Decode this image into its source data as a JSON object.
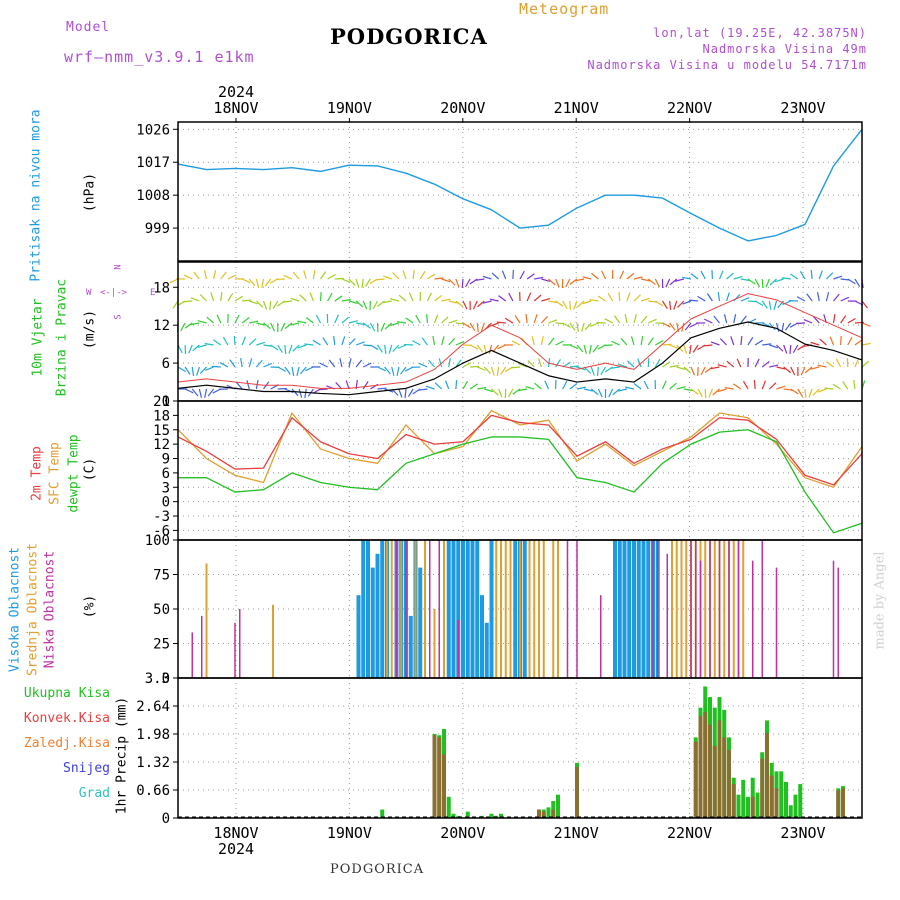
{
  "header": {
    "model_label": "Model",
    "model_name": "wrf—nmm_v3.9.1 e1km",
    "title": "PODGORICA",
    "meteogram": "Meteogram",
    "lonlat": "lon,lat (19.25E, 42.3875N)",
    "elevation": "Nadmorska Visina 49m",
    "model_elevation": "Nadmorska Visina u modelu 54.7171m",
    "footer_title": "PODGORICA",
    "watermark": "made by Angel"
  },
  "colors": {
    "pressure": "#1e9be0",
    "temp2m": "#e84040",
    "sfc": "#e0a030",
    "dewpt": "#20c020",
    "high_cloud": "#1e9be0",
    "mid_cloud": "#e0a030",
    "low_cloud": "#c030a0",
    "total_precip": "#20c020",
    "conv_precip": "#e84040",
    "frozen_precip": "#f08030",
    "snow": "#4040e0",
    "hail": "#30c0c0",
    "header_purple": "#b050d0",
    "header_orange": "#e0a030"
  },
  "time_axis": {
    "top_year": "2024",
    "bottom_year": "2024",
    "days": [
      "18NOV",
      "19NOV",
      "20NOV",
      "21NOV",
      "22NOV",
      "23NOV"
    ]
  },
  "chart_data": [
    {
      "type": "line",
      "name": "pressure",
      "ylabel_lines": [
        "Pritisak na nivou mora",
        "(hPa)"
      ],
      "ylim": [
        990,
        1028
      ],
      "yticks": [
        "1026",
        "1017",
        "1008",
        "999"
      ],
      "ytick_values": [
        1026,
        1017,
        1008,
        999
      ],
      "x": [
        0,
        6,
        12,
        18,
        24,
        30,
        36,
        42,
        48,
        54,
        60,
        66,
        72,
        78,
        84,
        90,
        96,
        102,
        108,
        114,
        120,
        126,
        132,
        138,
        144
      ],
      "series": [
        {
          "values": [
            1016.5,
            1015.0,
            1015.3,
            1015.0,
            1015.5,
            1014.5,
            1016.2,
            1016.0,
            1014.0,
            1011.0,
            1007.0,
            1004.0,
            999.0,
            999.8,
            1004.5,
            1008.0,
            1008.0,
            1007.2,
            1003.0,
            999.0,
            995.5,
            997.0,
            1000.0,
            1016.0,
            1026.0
          ]
        }
      ]
    },
    {
      "type": "line",
      "name": "wind",
      "ylabel_lines": [
        "10m Vjetar",
        "Brzina i Pravac",
        "(m/s)"
      ],
      "legend_compass": [
        "N",
        "W",
        "E",
        "S"
      ],
      "ylim": [
        0,
        22
      ],
      "yticks": [
        "18",
        "12",
        "6",
        "0"
      ],
      "ytick_values": [
        18,
        12,
        6,
        0
      ],
      "x": [
        0,
        6,
        12,
        18,
        24,
        30,
        36,
        42,
        48,
        54,
        60,
        66,
        72,
        78,
        84,
        90,
        96,
        102,
        108,
        114,
        120,
        126,
        132,
        138,
        144
      ],
      "series": [
        {
          "name": "speed",
          "values": [
            2,
            2.5,
            2.0,
            1.5,
            1.5,
            1.2,
            1.0,
            1.5,
            2.0,
            3.5,
            6,
            8,
            6,
            4,
            3,
            3.5,
            3,
            6,
            10,
            11.5,
            12.5,
            11.5,
            9,
            8,
            6.5
          ]
        },
        {
          "name": "gust",
          "values": [
            3,
            3.5,
            3.0,
            2.5,
            2.5,
            2.0,
            2.0,
            2.5,
            3.0,
            5.0,
            9,
            12,
            10,
            6,
            5,
            6,
            5,
            9,
            13,
            15,
            17,
            16,
            14,
            12,
            10
          ]
        }
      ]
    },
    {
      "type": "line",
      "name": "temperature",
      "ylabel_lines": [
        "2m Temp",
        "SFC Temp",
        "dewpt Temp",
        "(C)"
      ],
      "ylim": [
        -8,
        21
      ],
      "yticks": [
        "21",
        "18",
        "15",
        "12",
        "9",
        "6",
        "3",
        "0",
        "-3",
        "-6"
      ],
      "ytick_values": [
        21,
        18,
        15,
        12,
        9,
        6,
        3,
        0,
        -3,
        -6
      ],
      "x": [
        0,
        6,
        12,
        18,
        24,
        30,
        36,
        42,
        48,
        54,
        60,
        66,
        72,
        78,
        84,
        90,
        96,
        102,
        108,
        114,
        120,
        126,
        132,
        138,
        144
      ],
      "series": [
        {
          "name": "2m Temp",
          "values": [
            13.5,
            10.5,
            6.8,
            7.0,
            17.5,
            12.5,
            10.0,
            9.0,
            14.0,
            12.0,
            12.5,
            18.0,
            16.5,
            16.0,
            9.5,
            12.5,
            8.0,
            11.0,
            13.0,
            17.5,
            17.0,
            13.0,
            5.5,
            3.5,
            10.0
          ]
        },
        {
          "name": "SFC Temp",
          "values": [
            15.0,
            9.0,
            5.5,
            4.0,
            18.5,
            11.0,
            9.0,
            8.0,
            16.0,
            10.0,
            11.5,
            19.0,
            16.0,
            17.0,
            8.5,
            12.0,
            7.5,
            10.5,
            13.5,
            18.5,
            17.5,
            12.0,
            5.0,
            3.0,
            11.5
          ]
        },
        {
          "name": "dewpt Temp",
          "values": [
            5.0,
            5.0,
            2.0,
            2.5,
            6.0,
            4.0,
            3.0,
            2.5,
            8.0,
            10.0,
            12.0,
            13.5,
            13.5,
            13.0,
            5.0,
            4.0,
            2.0,
            8.0,
            12.0,
            14.5,
            15.0,
            12.5,
            2.0,
            -6.5,
            -4.5
          ]
        }
      ]
    },
    {
      "type": "bar",
      "name": "clouds",
      "ylabel_lines": [
        "Visoka Oblacnost",
        "Srednja Oblacnost",
        "Niska Oblacnost",
        "(%)"
      ],
      "ylim": [
        0,
        100
      ],
      "yticks": [
        "100",
        "75",
        "50",
        "25",
        "0"
      ],
      "ytick_values": [
        100,
        75,
        50,
        25,
        0
      ],
      "series": [
        {
          "name": "Visoka",
          "x": [
            38,
            39,
            40,
            41,
            42,
            43,
            44,
            46,
            47,
            48,
            49,
            50,
            51,
            57,
            58,
            59,
            60,
            61,
            62,
            63,
            64,
            65,
            66,
            71,
            72,
            73,
            92,
            93,
            94,
            95,
            96,
            97,
            98,
            99,
            100,
            101
          ],
          "values": [
            60,
            100,
            100,
            80,
            90,
            100,
            100,
            100,
            100,
            100,
            45,
            100,
            80,
            100,
            100,
            100,
            100,
            100,
            100,
            100,
            60,
            40,
            100,
            100,
            100,
            100,
            100,
            100,
            100,
            100,
            100,
            100,
            100,
            100,
            100,
            100
          ]
        },
        {
          "name": "Srednja",
          "x": [
            6,
            20,
            44,
            45,
            47,
            50,
            52,
            54,
            56,
            67,
            68,
            69,
            70,
            72,
            74,
            75,
            76,
            77,
            79,
            80,
            104,
            105,
            106,
            107,
            108,
            109,
            110,
            111,
            112,
            113,
            114,
            115,
            116,
            117,
            118,
            119
          ],
          "values": [
            83,
            53,
            100,
            100,
            100,
            100,
            100,
            50,
            100,
            100,
            100,
            100,
            100,
            100,
            100,
            100,
            100,
            100,
            100,
            100,
            100,
            100,
            100,
            100,
            100,
            100,
            100,
            100,
            100,
            100,
            100,
            100,
            100,
            100,
            100,
            100
          ]
        },
        {
          "name": "Niska",
          "x": [
            3,
            5,
            12,
            13,
            46,
            48,
            53,
            55,
            59,
            82,
            84,
            89,
            100,
            101,
            103,
            108,
            109,
            110,
            112,
            114,
            116,
            118,
            121,
            123,
            126,
            138,
            139
          ],
          "values": [
            33,
            45,
            40,
            50,
            100,
            100,
            100,
            100,
            42,
            100,
            100,
            60,
            100,
            100,
            90,
            100,
            100,
            85,
            100,
            100,
            100,
            100,
            85,
            100,
            80,
            85,
            80
          ]
        }
      ]
    },
    {
      "type": "bar",
      "name": "precipitation",
      "ylabel_lines": [
        "1hr Precip (mm)"
      ],
      "legend": [
        "Ukupna Kisa",
        "Konvek.Kisa",
        "Zaledj.Kisa",
        "Snijeg",
        "Grad"
      ],
      "ylim": [
        0,
        3.3
      ],
      "yticks": [
        "3.3",
        "2.64",
        "1.98",
        "1.32",
        "0.66",
        "0"
      ],
      "ytick_values": [
        3.3,
        2.64,
        1.98,
        1.32,
        0.66,
        0
      ],
      "series": [
        {
          "name": "Ukupna Kisa",
          "x": [
            43,
            54,
            55,
            56,
            57,
            58,
            59,
            61,
            64,
            66,
            67,
            68,
            76,
            77,
            78,
            79,
            80,
            84,
            109,
            110,
            111,
            112,
            113,
            114,
            115,
            116,
            117,
            118,
            119,
            120,
            121,
            122,
            123,
            124,
            125,
            126,
            127,
            128,
            129,
            130,
            131,
            139,
            140
          ],
          "values": [
            0.2,
            1.98,
            1.95,
            2.1,
            0.5,
            0.1,
            0.05,
            0.15,
            0.05,
            0.1,
            0.05,
            0.1,
            0.2,
            0.2,
            0.25,
            0.4,
            0.55,
            1.3,
            1.9,
            2.6,
            3.1,
            2.85,
            2.6,
            2.85,
            2.55,
            1.9,
            0.95,
            0.55,
            0.9,
            0.5,
            0.95,
            0.6,
            1.55,
            2.3,
            1.3,
            1.1,
            1.1,
            0.85,
            0.3,
            0.55,
            0.8,
            0.7,
            0.75
          ]
        },
        {
          "name": "Konvek.Kisa",
          "x": [
            54,
            55,
            56,
            76,
            77,
            79,
            84,
            109,
            110,
            111,
            112,
            113,
            114,
            115,
            116,
            117,
            121,
            123,
            124,
            125,
            126,
            139,
            140
          ],
          "values": [
            1.95,
            1.9,
            1.5,
            0.2,
            0.15,
            0.2,
            1.2,
            1.8,
            2.4,
            2.5,
            2.2,
            1.7,
            2.3,
            1.9,
            1.6,
            0.8,
            0.5,
            1.4,
            2.0,
            1.0,
            0.7,
            0.65,
            0.7
          ]
        }
      ]
    }
  ]
}
